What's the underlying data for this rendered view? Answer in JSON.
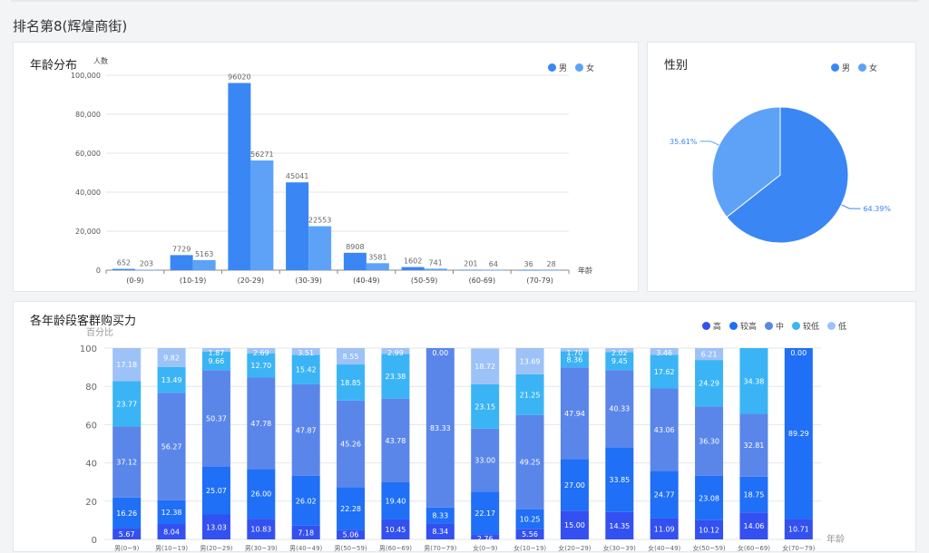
{
  "page": {
    "title": "排名第8(辉煌商街)"
  },
  "colors": {
    "male": "#3a86f5",
    "female": "#5ea2f7",
    "levels": [
      "#3350f0",
      "#1f6ff7",
      "#5a86ea",
      "#3ab4f5",
      "#9dc2f7"
    ]
  },
  "chart_data": [
    {
      "id": "age",
      "type": "bar",
      "title": "年龄分布",
      "ylabel": "人数",
      "xlabel": "年龄",
      "categories": [
        "(0-9)",
        "(10-19)",
        "(20-29)",
        "(30-39)",
        "(40-49)",
        "(50-59)",
        "(60-69)",
        "(70-79)"
      ],
      "ylim": [
        0,
        100000
      ],
      "yticks": [
        "0",
        "20,000",
        "40,000",
        "60,000",
        "80,000",
        "100,000"
      ],
      "ytick_values": [
        0,
        20000,
        40000,
        60000,
        80000,
        100000
      ],
      "series": [
        {
          "name": "男",
          "values": [
            652,
            7729,
            96020,
            45041,
            8908,
            1602,
            201,
            36
          ]
        },
        {
          "name": "女",
          "values": [
            203,
            5163,
            56271,
            22553,
            3581,
            741,
            64,
            28
          ]
        }
      ],
      "legend": "top-right",
      "grid": true
    },
    {
      "id": "gender",
      "type": "pie",
      "title": "性别",
      "labels": [
        "男",
        "女"
      ],
      "values": [
        64.39,
        35.61
      ],
      "value_labels": [
        "64.39%",
        "35.61%"
      ],
      "legend": "top-right"
    },
    {
      "id": "power",
      "type": "bar",
      "stacked": true,
      "title": "各年龄段客群购买力",
      "ylabel": "百分比",
      "xlabel": "年龄",
      "ylim": [
        0,
        100
      ],
      "yticks": [
        "0",
        "20",
        "40",
        "60",
        "80",
        "100"
      ],
      "ytick_values": [
        0,
        20,
        40,
        60,
        80,
        100
      ],
      "categories": [
        "男(0~9)",
        "男(10~19)",
        "男(20~29)",
        "男(30~39)",
        "男(40~49)",
        "男(50~59)",
        "男(60~69)",
        "男(70~79)",
        "女(0~9)",
        "女(10~19)",
        "女(20~29)",
        "女(30~39)",
        "女(40~49)",
        "女(50~59)",
        "女(60~69)",
        "女(70~79)"
      ],
      "series": [
        {
          "name": "高",
          "values": [
            5.67,
            8.04,
            13.03,
            10.83,
            7.18,
            5.06,
            10.45,
            8.34,
            2.76,
            5.56,
            15.0,
            14.35,
            11.09,
            10.12,
            14.06,
            10.71
          ]
        },
        {
          "name": "较高",
          "values": [
            16.26,
            12.38,
            25.07,
            26.0,
            26.02,
            22.28,
            19.4,
            8.33,
            22.17,
            10.25,
            27.0,
            33.85,
            24.77,
            23.08,
            18.75,
            89.29
          ]
        },
        {
          "name": "中",
          "values": [
            37.12,
            56.27,
            50.37,
            47.78,
            47.87,
            45.26,
            43.78,
            83.33,
            33.0,
            49.25,
            47.94,
            40.33,
            43.06,
            36.3,
            32.81,
            0
          ]
        },
        {
          "name": "较低",
          "values": [
            23.77,
            13.49,
            9.66,
            12.7,
            15.42,
            18.85,
            23.38,
            0.0,
            23.15,
            21.25,
            8.36,
            9.45,
            17.62,
            24.29,
            34.38,
            0
          ]
        },
        {
          "name": "低",
          "values": [
            17.18,
            9.82,
            1.87,
            2.69,
            3.51,
            8.55,
            2.99,
            0.0,
            18.72,
            13.69,
            1.7,
            2.02,
            3.46,
            6.21,
            0.0,
            0.0
          ]
        }
      ],
      "legend": "top-right",
      "grid": true
    }
  ]
}
